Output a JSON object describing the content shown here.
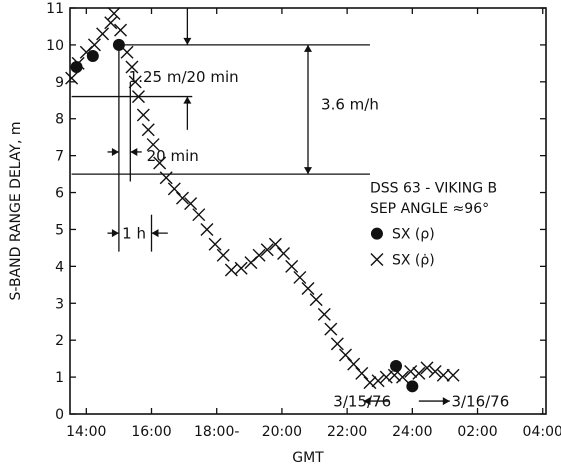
{
  "chart_data": {
    "type": "scatter",
    "title": "",
    "xlabel": "GMT",
    "ylabel": "S-BAND RANGE DELAY, m",
    "x_unit": "GMT hour",
    "xlim": [
      13.5,
      28.1
    ],
    "ylim": [
      0,
      11
    ],
    "x_ticks": [
      {
        "x": 14,
        "label": "14:00"
      },
      {
        "x": 16,
        "label": "16:00"
      },
      {
        "x": 18,
        "label": "18:00-"
      },
      {
        "x": 20,
        "label": "20:00"
      },
      {
        "x": 22,
        "label": "22:00"
      },
      {
        "x": 24,
        "label": "24:00"
      },
      {
        "x": 26,
        "label": "02:00"
      },
      {
        "x": 28,
        "label": "04:00"
      }
    ],
    "y_ticks": [
      0,
      1,
      2,
      3,
      4,
      5,
      6,
      7,
      8,
      9,
      10,
      11
    ],
    "grid": false,
    "legend_position": "right",
    "legend_header": [
      "DSS 63 - VIKING B",
      "SEP ANGLE ≈96°"
    ],
    "series": [
      {
        "name": "SX (ρ)",
        "marker": "filled-circle",
        "points": [
          {
            "x": 13.7,
            "y": 9.4
          },
          {
            "x": 14.2,
            "y": 9.7
          },
          {
            "x": 15.0,
            "y": 10.0
          },
          {
            "x": 23.5,
            "y": 1.3
          },
          {
            "x": 24.0,
            "y": 0.75
          }
        ]
      },
      {
        "name": "SX (ρ̇)",
        "marker": "x-cross",
        "points": [
          {
            "x": 13.55,
            "y": 9.1
          },
          {
            "x": 13.75,
            "y": 9.5
          },
          {
            "x": 14.0,
            "y": 9.8
          },
          {
            "x": 14.25,
            "y": 10.0
          },
          {
            "x": 14.5,
            "y": 10.3
          },
          {
            "x": 14.75,
            "y": 10.6
          },
          {
            "x": 14.85,
            "y": 10.85
          },
          {
            "x": 15.05,
            "y": 10.4
          },
          {
            "x": 15.25,
            "y": 9.8
          },
          {
            "x": 15.4,
            "y": 9.4
          },
          {
            "x": 15.5,
            "y": 9.0
          },
          {
            "x": 15.6,
            "y": 8.6
          },
          {
            "x": 15.75,
            "y": 8.1
          },
          {
            "x": 15.9,
            "y": 7.7
          },
          {
            "x": 16.05,
            "y": 7.3
          },
          {
            "x": 16.25,
            "y": 6.8
          },
          {
            "x": 16.45,
            "y": 6.4
          },
          {
            "x": 16.7,
            "y": 6.1
          },
          {
            "x": 16.95,
            "y": 5.85
          },
          {
            "x": 17.2,
            "y": 5.7
          },
          {
            "x": 17.45,
            "y": 5.4
          },
          {
            "x": 17.7,
            "y": 5.0
          },
          {
            "x": 17.95,
            "y": 4.6
          },
          {
            "x": 18.2,
            "y": 4.3
          },
          {
            "x": 18.45,
            "y": 3.9
          },
          {
            "x": 18.75,
            "y": 3.95
          },
          {
            "x": 19.05,
            "y": 4.1
          },
          {
            "x": 19.3,
            "y": 4.3
          },
          {
            "x": 19.55,
            "y": 4.45
          },
          {
            "x": 19.8,
            "y": 4.6
          },
          {
            "x": 20.05,
            "y": 4.35
          },
          {
            "x": 20.3,
            "y": 4.0
          },
          {
            "x": 20.55,
            "y": 3.7
          },
          {
            "x": 20.8,
            "y": 3.4
          },
          {
            "x": 21.05,
            "y": 3.1
          },
          {
            "x": 21.3,
            "y": 2.7
          },
          {
            "x": 21.5,
            "y": 2.3
          },
          {
            "x": 21.7,
            "y": 1.9
          },
          {
            "x": 21.95,
            "y": 1.6
          },
          {
            "x": 22.2,
            "y": 1.35
          },
          {
            "x": 22.45,
            "y": 1.1
          },
          {
            "x": 22.7,
            "y": 0.85
          },
          {
            "x": 22.95,
            "y": 0.9
          },
          {
            "x": 23.2,
            "y": 1.0
          },
          {
            "x": 23.45,
            "y": 1.05
          },
          {
            "x": 23.7,
            "y": 1.0
          },
          {
            "x": 23.95,
            "y": 1.15
          },
          {
            "x": 24.2,
            "y": 1.1
          },
          {
            "x": 24.45,
            "y": 1.25
          },
          {
            "x": 24.7,
            "y": 1.15
          },
          {
            "x": 24.95,
            "y": 1.05
          },
          {
            "x": 25.25,
            "y": 1.05
          }
        ]
      }
    ],
    "annotations": [
      {
        "text": "1.25 m/20 min"
      },
      {
        "text": "3.6 m/h"
      },
      {
        "text": "20 min"
      },
      {
        "text": "1 h"
      },
      {
        "text": "3/15/76"
      },
      {
        "text": "3/16/76"
      }
    ]
  }
}
